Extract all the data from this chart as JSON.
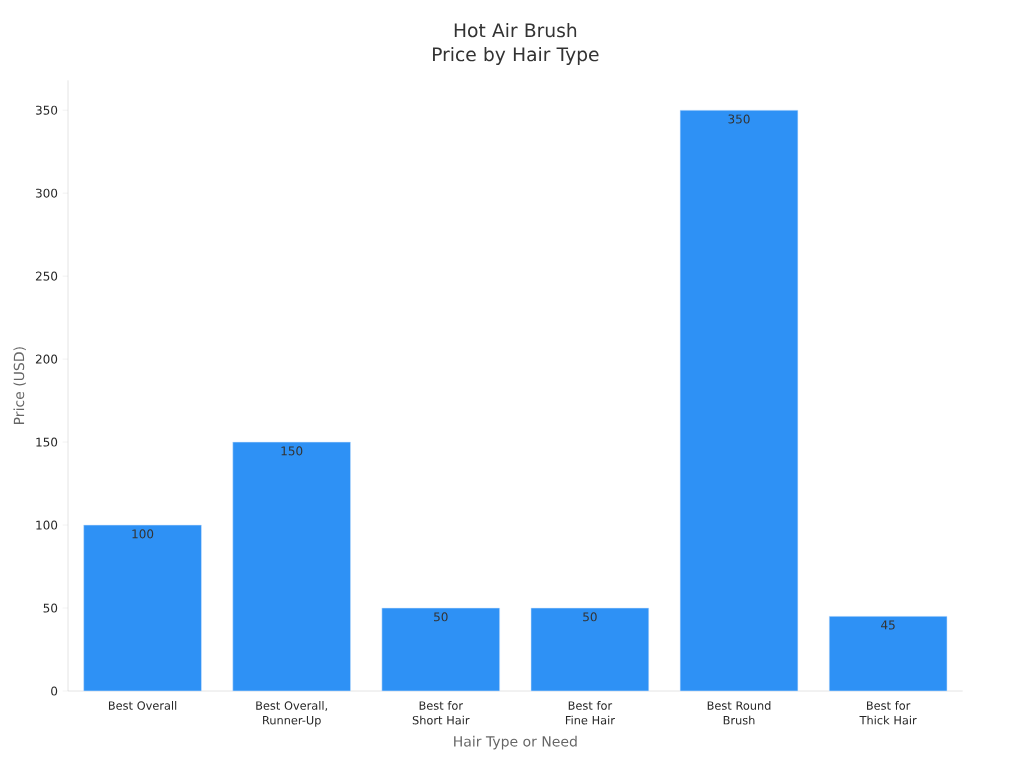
{
  "chart_data": {
    "type": "bar",
    "title": "Hot Air Brush Price by Hair Type",
    "xlabel": "Hair Type or Need",
    "ylabel": "Price (USD)",
    "categories": [
      "Best Overall",
      "Best Overall, Runner-Up",
      "Best for Short Hair",
      "Best for Fine Hair",
      "Best Round Brush",
      "Best for Thick Hair"
    ],
    "values": [
      100,
      150,
      50,
      50,
      350,
      45
    ],
    "color": "#2e91f5",
    "ylim": [
      0,
      368
    ],
    "yticks": [
      0,
      50,
      100,
      150,
      200,
      250,
      300,
      350
    ],
    "data_labels": true
  }
}
